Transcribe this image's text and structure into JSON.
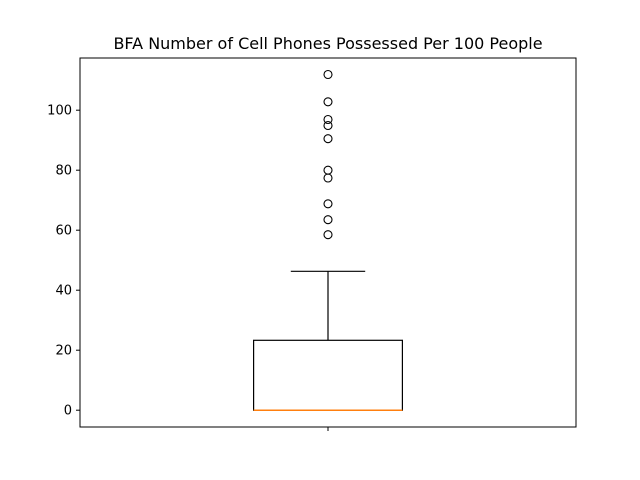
{
  "chart_data": {
    "type": "boxplot",
    "title": "BFA Number of Cell Phones Possessed Per 100 People",
    "xlabel": "",
    "ylabel": "",
    "ylim": [
      -5.6,
      117.4
    ],
    "yticks": [
      0,
      20,
      40,
      60,
      80,
      100
    ],
    "ytick_labels": [
      "0",
      "20",
      "40",
      "60",
      "80",
      "100"
    ],
    "xticks": [
      1
    ],
    "xtick_labels": [
      ""
    ],
    "grid": false,
    "box": {
      "position": 1,
      "whisker_low": 0,
      "q1": 0,
      "median": 0,
      "q3": 23.3,
      "whisker_high": 46.3,
      "outliers": [
        58.5,
        63.5,
        68.8,
        77.4,
        80.0,
        90.5,
        94.9,
        96.9,
        102.8,
        111.9
      ]
    },
    "colors": {
      "box": "#000000",
      "median": "#ff7f0e",
      "outlier_edge": "#000000",
      "background": "#ffffff"
    }
  }
}
